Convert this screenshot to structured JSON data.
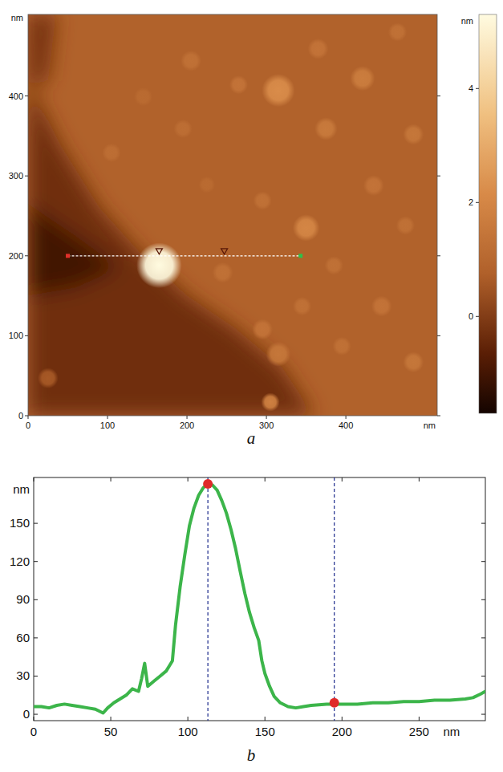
{
  "chart_data": [
    {
      "type": "heatmap",
      "panel": "a",
      "xlim": [
        0,
        515
      ],
      "ylim": [
        0,
        502
      ],
      "xticks": [
        0,
        100,
        200,
        300,
        400
      ],
      "yticks": [
        0,
        100,
        200,
        300,
        400
      ],
      "x_label": "nm",
      "y_label": "nm",
      "colorbar": {
        "range": [
          -1.7,
          5.3
        ],
        "ticks": [
          0,
          2,
          4
        ],
        "label": "nm"
      },
      "base_z": 0.8,
      "regions": [
        {
          "z": -0.2,
          "points": [
            [
              0,
              502
            ],
            [
              35,
              502
            ],
            [
              25,
              420
            ],
            [
              0,
              410
            ]
          ]
        },
        {
          "z": -0.3,
          "points": [
            [
              0,
              420
            ],
            [
              40,
              340
            ],
            [
              90,
              260
            ],
            [
              140,
              205
            ],
            [
              200,
              150
            ],
            [
              260,
              110
            ],
            [
              320,
              60
            ],
            [
              360,
              0
            ],
            [
              0,
              0
            ]
          ]
        },
        {
          "z": -1.0,
          "points": [
            [
              0,
              265
            ],
            [
              60,
              225
            ],
            [
              115,
              185
            ],
            [
              60,
              160
            ],
            [
              0,
              150
            ]
          ]
        }
      ],
      "features": [
        {
          "x": 165,
          "y": 188,
          "r": 22,
          "z": 5.3
        },
        {
          "x": 315,
          "y": 407,
          "r": 16,
          "z": 2.2
        },
        {
          "x": 350,
          "y": 235,
          "r": 13,
          "z": 2.0
        },
        {
          "x": 421,
          "y": 422,
          "r": 12,
          "z": 1.7
        },
        {
          "x": 485,
          "y": 352,
          "r": 10,
          "z": 1.5
        },
        {
          "x": 205,
          "y": 444,
          "r": 10,
          "z": 1.3
        },
        {
          "x": 105,
          "y": 329,
          "r": 9,
          "z": 1.2
        },
        {
          "x": 265,
          "y": 414,
          "r": 9,
          "z": 1.4
        },
        {
          "x": 375,
          "y": 359,
          "r": 11,
          "z": 1.6
        },
        {
          "x": 435,
          "y": 288,
          "r": 10,
          "z": 1.4
        },
        {
          "x": 295,
          "y": 269,
          "r": 9,
          "z": 1.3
        },
        {
          "x": 245,
          "y": 179,
          "r": 10,
          "z": 1.3
        },
        {
          "x": 315,
          "y": 77,
          "r": 12,
          "z": 1.5
        },
        {
          "x": 295,
          "y": 108,
          "r": 10,
          "z": 1.4
        },
        {
          "x": 385,
          "y": 188,
          "r": 9,
          "z": 1.3
        },
        {
          "x": 445,
          "y": 137,
          "r": 10,
          "z": 1.4
        },
        {
          "x": 395,
          "y": 87,
          "r": 9,
          "z": 1.3
        },
        {
          "x": 485,
          "y": 67,
          "r": 10,
          "z": 1.5
        },
        {
          "x": 305,
          "y": 17,
          "r": 9,
          "z": 1.8
        },
        {
          "x": 475,
          "y": 238,
          "r": 9,
          "z": 1.3
        },
        {
          "x": 195,
          "y": 359,
          "r": 9,
          "z": 1.2
        },
        {
          "x": 145,
          "y": 399,
          "r": 9,
          "z": 1.1
        },
        {
          "x": 365,
          "y": 459,
          "r": 10,
          "z": 1.4
        },
        {
          "x": 465,
          "y": 480,
          "r": 9,
          "z": 1.3
        },
        {
          "x": 225,
          "y": 289,
          "r": 8,
          "z": 1.1
        },
        {
          "x": 345,
          "y": 137,
          "r": 9,
          "z": 1.3
        },
        {
          "x": 25,
          "y": 47,
          "r": 10,
          "z": 0.6
        }
      ],
      "profile": {
        "x": [
          50,
          343
        ],
        "y": 200,
        "markers": [
          165,
          247
        ]
      }
    },
    {
      "type": "line",
      "panel": "b",
      "x": [
        0,
        5,
        10,
        15,
        20,
        25,
        30,
        35,
        40,
        45,
        48,
        52,
        56,
        60,
        64,
        68,
        70,
        72,
        74,
        78,
        82,
        86,
        88,
        90,
        92,
        95,
        98,
        101,
        104,
        107,
        110,
        113,
        116,
        119,
        122,
        125,
        128,
        131,
        134,
        137,
        140,
        143,
        146,
        148,
        150,
        153,
        156,
        160,
        165,
        170,
        175,
        180,
        190,
        200,
        210,
        220,
        230,
        240,
        250,
        260,
        270,
        280,
        285,
        290,
        293
      ],
      "values": [
        6,
        6,
        5,
        7,
        8,
        7,
        6,
        5,
        4,
        1,
        5,
        9,
        12,
        15,
        20,
        18,
        28,
        40,
        22,
        26,
        30,
        34,
        38,
        42,
        70,
        100,
        125,
        148,
        162,
        172,
        178,
        181,
        180,
        176,
        168,
        158,
        145,
        130,
        112,
        95,
        80,
        68,
        58,
        42,
        32,
        22,
        14,
        9,
        6,
        5,
        6,
        7,
        8,
        8,
        8,
        9,
        9,
        10,
        10,
        11,
        11,
        12,
        13,
        16,
        18
      ],
      "color": "#3cb54a",
      "xlim": [
        0,
        293
      ],
      "ylim": [
        -5,
        186
      ],
      "xticks": [
        0,
        50,
        100,
        150,
        200,
        250
      ],
      "yticks": [
        0,
        30,
        60,
        90,
        120,
        150
      ],
      "x_label": "nm",
      "y_label": "nm",
      "markers": {
        "x": [
          113,
          195
        ],
        "y": [
          181,
          9
        ]
      }
    }
  ]
}
